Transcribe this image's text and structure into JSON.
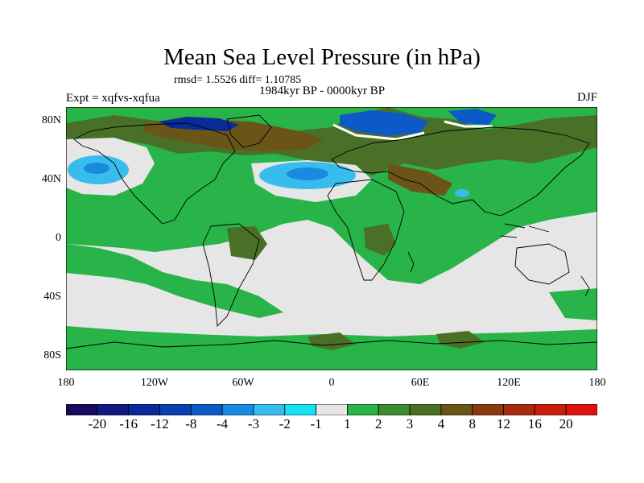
{
  "title": "Mean Sea Level Pressure (in hPa)",
  "stats": "rmsd= 1.5526 diff= 1.10785",
  "experiment": "Expt = xqfvs-xqfua",
  "period": "1984kyr BP - 0000kyr BP",
  "season": "DJF",
  "axes": {
    "y_ticks": [
      "80N",
      "40N",
      "0",
      "40S",
      "80S"
    ],
    "x_ticks": [
      "180",
      "120W",
      "60W",
      "0",
      "60E",
      "120E",
      "180"
    ]
  },
  "colorbar": {
    "labels": [
      "-20",
      "-16",
      "-12",
      "-8",
      "-4",
      "-3",
      "-2",
      "-1",
      "1",
      "2",
      "3",
      "4",
      "8",
      "12",
      "16",
      "20"
    ],
    "colors": [
      "#1a0a5e",
      "#101a80",
      "#0a2a9a",
      "#0a40b0",
      "#0c5ac8",
      "#1a8ae0",
      "#38bcec",
      "#18e0f0",
      "#e6e6e6",
      "#28b448",
      "#3c8c30",
      "#4a7028",
      "#6a5418",
      "#8a3a10",
      "#a82a0c",
      "#c81e0c",
      "#e01010"
    ]
  },
  "map_colors": {
    "ocean_neutral": "#e6e6e6",
    "land_outline": "#000000",
    "green": "#28b448",
    "olive": "#4a7028",
    "brown": "#6a5418",
    "lightblue": "#38bcec",
    "blue": "#0c5ac8",
    "darkblue": "#0a2a9a"
  }
}
